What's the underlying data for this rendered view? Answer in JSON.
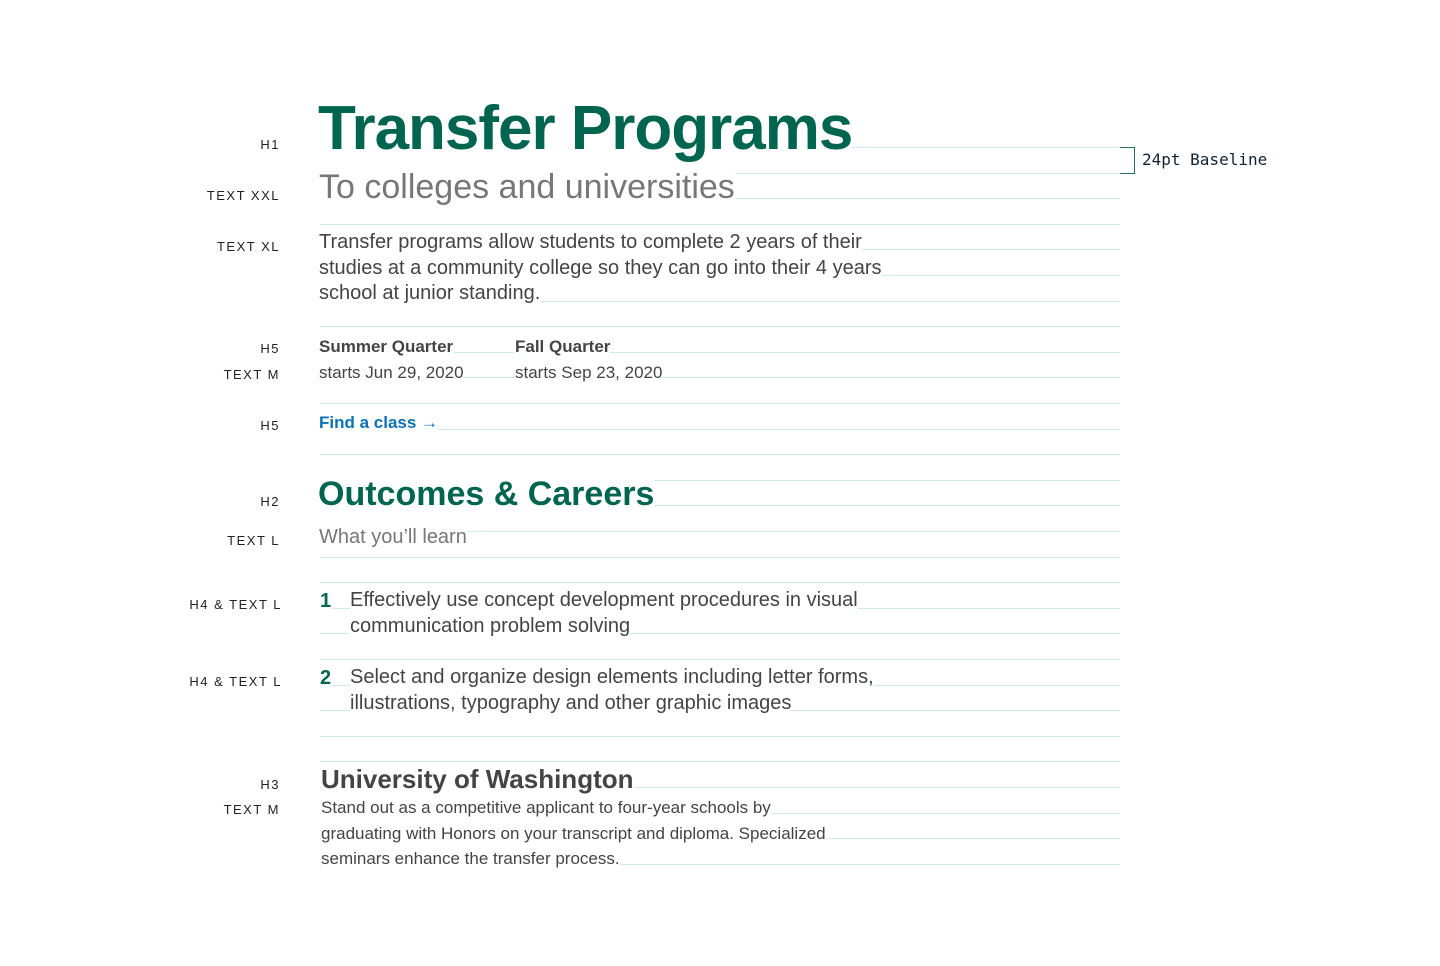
{
  "labels": {
    "h1": "H1",
    "text_xxl": "TEXT XXL",
    "text_xl": "TEXT XL",
    "h5a": "H5",
    "text_m_a": "TEXT M",
    "h5b": "H5",
    "h2": "H2",
    "text_l": "TEXT L",
    "h4a": "H4 & TEXT L",
    "h4b": "H4 & TEXT L",
    "h3": "H3",
    "text_m_b": "TEXT M"
  },
  "baseline_label": "24pt Baseline",
  "colors": {
    "heading": "#00654f",
    "link": "#0a72b5",
    "baseline": "#cdeee6",
    "muted": "#777777",
    "body": "#444444"
  },
  "content": {
    "title": "Transfer Programs",
    "subtitle": "To colleges and universities",
    "intro": [
      "Transfer programs allow students to complete 2 years of their",
      "studies at a community college so they can go into their 4 years",
      "school at junior standing."
    ],
    "quarters": [
      {
        "name": "Summer Quarter",
        "start": "starts Jun 29, 2020"
      },
      {
        "name": "Fall Quarter",
        "start": "starts Sep 23, 2020"
      }
    ],
    "link": "Find a class →",
    "section": "Outcomes & Careers",
    "section_sub": "What you’ll learn",
    "outcomes": [
      {
        "num": "1",
        "lines": [
          "Effectively use concept development procedures in visual",
          "communication problem solving"
        ]
      },
      {
        "num": "2",
        "lines": [
          "Select and organize design elements including letter forms,",
          "illustrations, typography and other graphic images"
        ]
      }
    ],
    "uni_title": "University of Washington",
    "uni_text": [
      "Stand out as a competitive applicant to four-year schools by",
      "graduating with Honors on your transcript and diploma. Specialized",
      "seminars enhance the transfer process."
    ]
  }
}
